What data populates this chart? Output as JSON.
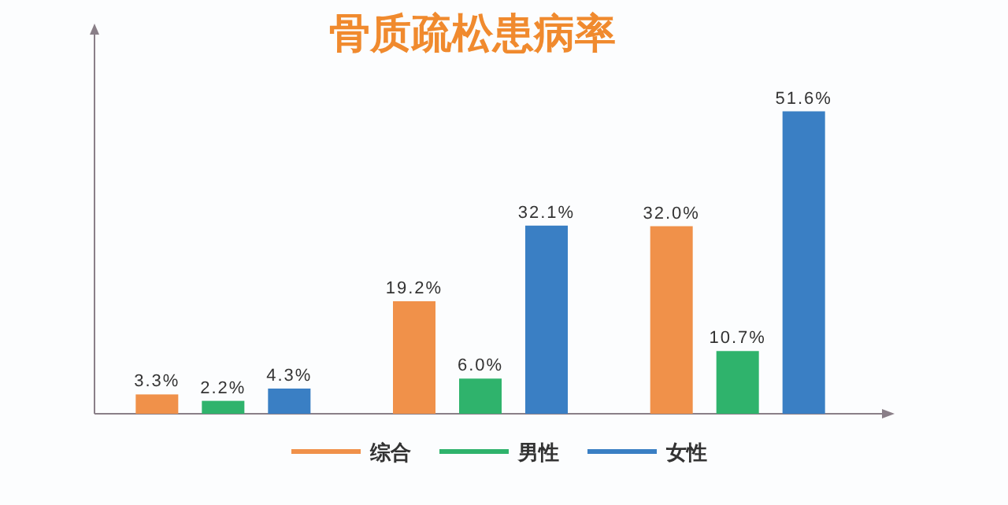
{
  "chart_data": {
    "type": "bar",
    "title": "骨质疏松患病率",
    "categories": [
      null,
      null,
      null
    ],
    "series": [
      {
        "name": "综合",
        "color": "#f0914a",
        "values": [
          3.3,
          19.2,
          32.0
        ],
        "value_labels": [
          "3.3%",
          "19.2%",
          "32.0%"
        ]
      },
      {
        "name": "男性",
        "color": "#2fb36c",
        "values": [
          2.2,
          6.0,
          10.7
        ],
        "value_labels": [
          "2.2%",
          "6.0%",
          "10.7%"
        ]
      },
      {
        "name": "女性",
        "color": "#3a7fc4",
        "values": [
          4.3,
          32.1,
          51.6
        ],
        "value_labels": [
          "4.3%",
          "32.1%",
          "51.6%"
        ]
      }
    ],
    "legend": "bottom"
  }
}
